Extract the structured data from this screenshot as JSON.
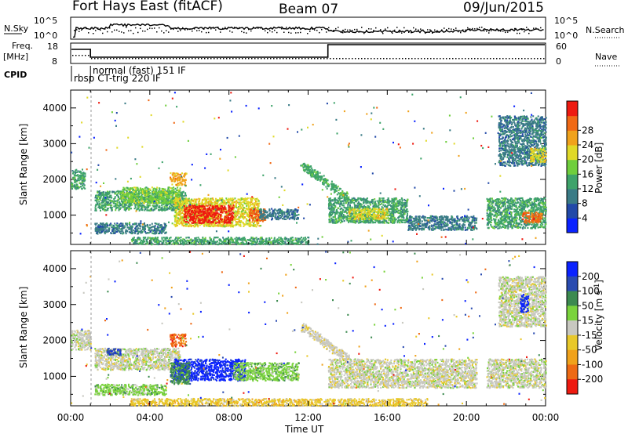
{
  "header": {
    "station": "Fort Hays East (fitACF)",
    "beam": "Beam 07",
    "date": "09/Jun/2015"
  },
  "noise_panel": {
    "left_label": "N.Sky",
    "right_label": "N.Search",
    "left_ticks": [
      "10^5",
      "10^0"
    ],
    "right_ticks": [
      "10^5",
      "10^0"
    ]
  },
  "freq_panel": {
    "left_label_line1": "Freq.",
    "left_label_line2": "[MHz]",
    "left_ticks": [
      "18",
      "8"
    ],
    "right_label": "Nave",
    "right_ticks": [
      "60",
      "0"
    ]
  },
  "cpid_panel": {
    "label": "CPID",
    "modes": [
      {
        "name": "rbsp CT-trig 220 IF",
        "start_hour": 0,
        "end_hour": 1.0
      },
      {
        "name": "normal (fast) 151 IF",
        "start_hour": 1.0,
        "end_hour": 24
      }
    ]
  },
  "x_axis": {
    "label": "Time UT",
    "ticks": [
      "00:00",
      "04:00",
      "08:00",
      "12:00",
      "16:00",
      "20:00",
      "00:00"
    ],
    "range_hours": [
      0,
      24
    ]
  },
  "chart_data": [
    {
      "type": "heatmap",
      "name": "power",
      "ylabel": "Slant Range [km]",
      "yticks": [
        1000,
        2000,
        3000,
        4000
      ],
      "ylim": [
        180,
        4500
      ],
      "xlim": [
        0,
        24
      ],
      "colorbar": {
        "label": "Power [dB]",
        "ticks": [
          "4",
          "8",
          "12",
          "16",
          "20",
          "24",
          "28"
        ],
        "colors": [
          "#0a22ff",
          "#2249a8",
          "#3a7b86",
          "#3ea36a",
          "#6fce3d",
          "#e0d928",
          "#f0a21c",
          "#f06915",
          "#ee1a10"
        ]
      },
      "regions": [
        {
          "t0": 0.0,
          "t1": 0.7,
          "r0": 1750,
          "r1": 2300,
          "level": 3
        },
        {
          "t0": 1.2,
          "t1": 5.8,
          "r0": 1150,
          "r1": 1700,
          "level": 3
        },
        {
          "t0": 2.5,
          "t1": 5.5,
          "r0": 1350,
          "r1": 1800,
          "level": 4
        },
        {
          "t0": 1.2,
          "t1": 4.8,
          "r0": 500,
          "r1": 800,
          "level": 2
        },
        {
          "t0": 5.2,
          "t1": 9.5,
          "r0": 700,
          "r1": 1500,
          "level": 5
        },
        {
          "t0": 5.7,
          "t1": 8.2,
          "r0": 800,
          "r1": 1300,
          "level": 8
        },
        {
          "t0": 9.0,
          "t1": 9.8,
          "r0": 850,
          "r1": 1200,
          "level": 7
        },
        {
          "t0": 9.5,
          "t1": 11.5,
          "r0": 900,
          "r1": 1200,
          "level": 2
        },
        {
          "t0": 5.0,
          "t1": 5.8,
          "r0": 1850,
          "r1": 2200,
          "level": 6
        },
        {
          "t0": 13.0,
          "t1": 17.0,
          "r0": 800,
          "r1": 1500,
          "level": 3
        },
        {
          "t0": 14.0,
          "t1": 16.0,
          "r0": 900,
          "r1": 1200,
          "level": 5
        },
        {
          "t0": 17.0,
          "t1": 20.5,
          "r0": 600,
          "r1": 1000,
          "level": 2
        },
        {
          "t0": 21.0,
          "t1": 24.0,
          "r0": 650,
          "r1": 1500,
          "level": 3
        },
        {
          "t0": 22.8,
          "t1": 23.8,
          "r0": 800,
          "r1": 1100,
          "level": 7
        },
        {
          "t0": 21.6,
          "t1": 24.0,
          "r0": 2400,
          "r1": 3800,
          "level": 2
        },
        {
          "t0": 23.2,
          "t1": 24.0,
          "r0": 2500,
          "r1": 2900,
          "level": 5
        },
        {
          "t0": 3.0,
          "t1": 12.0,
          "r0": 200,
          "r1": 400,
          "level": 3
        }
      ],
      "arcs": [
        {
          "t0": 11.7,
          "r0": 2400,
          "t1": 14.0,
          "r1": 1500,
          "level": 3
        }
      ]
    },
    {
      "type": "heatmap",
      "name": "velocity",
      "ylabel": "Slant Range [km]",
      "yticks": [
        1000,
        2000,
        3000,
        4000
      ],
      "ylim": [
        180,
        4500
      ],
      "xlim": [
        0,
        24
      ],
      "colorbar": {
        "label": "Velocity [m s^-1]",
        "ticks": [
          "200",
          "100",
          "50",
          "15",
          "-15",
          "-50",
          "-100",
          "-200"
        ],
        "colors": [
          "#0a22ff",
          "#2a4bb0",
          "#3c8a50",
          "#7ad33c",
          "#c8c8c0",
          "#e8c82a",
          "#f0a21c",
          "#ee6a14",
          "#ee1a10"
        ]
      },
      "regions": [
        {
          "t0": 0.0,
          "t1": 1.0,
          "r0": 1750,
          "r1": 2300,
          "level": 4
        },
        {
          "t0": 1.2,
          "t1": 5.5,
          "r0": 1200,
          "r1": 1800,
          "level": 4
        },
        {
          "t0": 1.2,
          "t1": 4.8,
          "r0": 500,
          "r1": 800,
          "level": 3
        },
        {
          "t0": 5.2,
          "t1": 8.8,
          "r0": 900,
          "r1": 1500,
          "level": 0
        },
        {
          "t0": 5.0,
          "t1": 6.0,
          "r0": 800,
          "r1": 1400,
          "level": 2
        },
        {
          "t0": 8.2,
          "t1": 11.5,
          "r0": 900,
          "r1": 1400,
          "level": 3
        },
        {
          "t0": 5.0,
          "t1": 5.8,
          "r0": 1850,
          "r1": 2200,
          "level": 7
        },
        {
          "t0": 1.8,
          "t1": 2.5,
          "r0": 1600,
          "r1": 1800,
          "level": 1
        },
        {
          "t0": 13.0,
          "t1": 20.5,
          "r0": 700,
          "r1": 1500,
          "level": 4
        },
        {
          "t0": 21.0,
          "t1": 24.0,
          "r0": 700,
          "r1": 1500,
          "level": 4
        },
        {
          "t0": 21.6,
          "t1": 24.0,
          "r0": 2400,
          "r1": 3800,
          "level": 4
        },
        {
          "t0": 22.7,
          "t1": 23.1,
          "r0": 2800,
          "r1": 3300,
          "level": 0
        },
        {
          "t0": 3.0,
          "t1": 18.0,
          "r0": 200,
          "r1": 400,
          "level": 5
        }
      ],
      "arcs": [
        {
          "t0": 11.7,
          "r0": 2400,
          "t1": 14.0,
          "r1": 1500,
          "level": 4
        }
      ]
    }
  ]
}
